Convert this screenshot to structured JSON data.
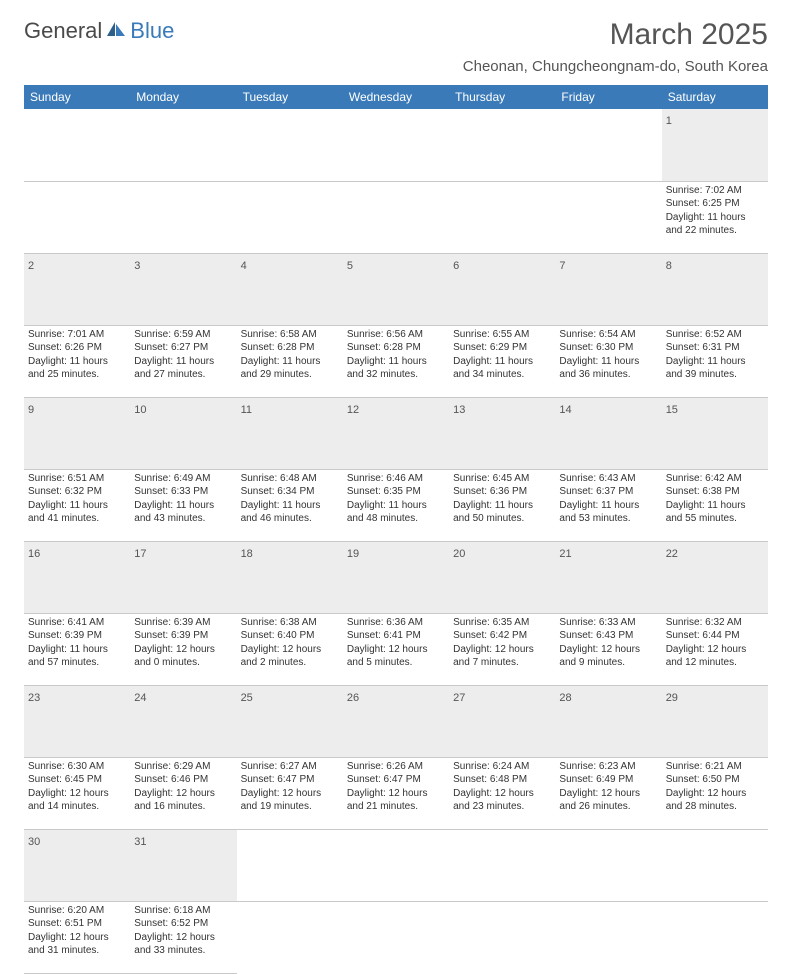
{
  "logo": {
    "word1": "General",
    "word2": "Blue"
  },
  "title": "March 2025",
  "location": "Cheonan, Chungcheongnam-do, South Korea",
  "colors": {
    "headerBlue": "#3a7ab8",
    "daynumBg": "#ededed",
    "borderGray": "#c9c9c9",
    "textGray": "#555555",
    "bodyText": "#333333",
    "white": "#ffffff"
  },
  "fonts": {
    "titleSize": 30,
    "locationSize": 15,
    "dayHeaderSize": 12,
    "dayNumSize": 11,
    "bodySize": 10
  },
  "dayHeaders": [
    "Sunday",
    "Monday",
    "Tuesday",
    "Wednesday",
    "Thursday",
    "Friday",
    "Saturday"
  ],
  "weeks": [
    [
      null,
      null,
      null,
      null,
      null,
      null,
      {
        "n": "1",
        "sunrise": "7:02 AM",
        "sunset": "6:25 PM",
        "daylight": "11 hours and 22 minutes."
      }
    ],
    [
      {
        "n": "2",
        "sunrise": "7:01 AM",
        "sunset": "6:26 PM",
        "daylight": "11 hours and 25 minutes."
      },
      {
        "n": "3",
        "sunrise": "6:59 AM",
        "sunset": "6:27 PM",
        "daylight": "11 hours and 27 minutes."
      },
      {
        "n": "4",
        "sunrise": "6:58 AM",
        "sunset": "6:28 PM",
        "daylight": "11 hours and 29 minutes."
      },
      {
        "n": "5",
        "sunrise": "6:56 AM",
        "sunset": "6:28 PM",
        "daylight": "11 hours and 32 minutes."
      },
      {
        "n": "6",
        "sunrise": "6:55 AM",
        "sunset": "6:29 PM",
        "daylight": "11 hours and 34 minutes."
      },
      {
        "n": "7",
        "sunrise": "6:54 AM",
        "sunset": "6:30 PM",
        "daylight": "11 hours and 36 minutes."
      },
      {
        "n": "8",
        "sunrise": "6:52 AM",
        "sunset": "6:31 PM",
        "daylight": "11 hours and 39 minutes."
      }
    ],
    [
      {
        "n": "9",
        "sunrise": "6:51 AM",
        "sunset": "6:32 PM",
        "daylight": "11 hours and 41 minutes."
      },
      {
        "n": "10",
        "sunrise": "6:49 AM",
        "sunset": "6:33 PM",
        "daylight": "11 hours and 43 minutes."
      },
      {
        "n": "11",
        "sunrise": "6:48 AM",
        "sunset": "6:34 PM",
        "daylight": "11 hours and 46 minutes."
      },
      {
        "n": "12",
        "sunrise": "6:46 AM",
        "sunset": "6:35 PM",
        "daylight": "11 hours and 48 minutes."
      },
      {
        "n": "13",
        "sunrise": "6:45 AM",
        "sunset": "6:36 PM",
        "daylight": "11 hours and 50 minutes."
      },
      {
        "n": "14",
        "sunrise": "6:43 AM",
        "sunset": "6:37 PM",
        "daylight": "11 hours and 53 minutes."
      },
      {
        "n": "15",
        "sunrise": "6:42 AM",
        "sunset": "6:38 PM",
        "daylight": "11 hours and 55 minutes."
      }
    ],
    [
      {
        "n": "16",
        "sunrise": "6:41 AM",
        "sunset": "6:39 PM",
        "daylight": "11 hours and 57 minutes."
      },
      {
        "n": "17",
        "sunrise": "6:39 AM",
        "sunset": "6:39 PM",
        "daylight": "12 hours and 0 minutes."
      },
      {
        "n": "18",
        "sunrise": "6:38 AM",
        "sunset": "6:40 PM",
        "daylight": "12 hours and 2 minutes."
      },
      {
        "n": "19",
        "sunrise": "6:36 AM",
        "sunset": "6:41 PM",
        "daylight": "12 hours and 5 minutes."
      },
      {
        "n": "20",
        "sunrise": "6:35 AM",
        "sunset": "6:42 PM",
        "daylight": "12 hours and 7 minutes."
      },
      {
        "n": "21",
        "sunrise": "6:33 AM",
        "sunset": "6:43 PM",
        "daylight": "12 hours and 9 minutes."
      },
      {
        "n": "22",
        "sunrise": "6:32 AM",
        "sunset": "6:44 PM",
        "daylight": "12 hours and 12 minutes."
      }
    ],
    [
      {
        "n": "23",
        "sunrise": "6:30 AM",
        "sunset": "6:45 PM",
        "daylight": "12 hours and 14 minutes."
      },
      {
        "n": "24",
        "sunrise": "6:29 AM",
        "sunset": "6:46 PM",
        "daylight": "12 hours and 16 minutes."
      },
      {
        "n": "25",
        "sunrise": "6:27 AM",
        "sunset": "6:47 PM",
        "daylight": "12 hours and 19 minutes."
      },
      {
        "n": "26",
        "sunrise": "6:26 AM",
        "sunset": "6:47 PM",
        "daylight": "12 hours and 21 minutes."
      },
      {
        "n": "27",
        "sunrise": "6:24 AM",
        "sunset": "6:48 PM",
        "daylight": "12 hours and 23 minutes."
      },
      {
        "n": "28",
        "sunrise": "6:23 AM",
        "sunset": "6:49 PM",
        "daylight": "12 hours and 26 minutes."
      },
      {
        "n": "29",
        "sunrise": "6:21 AM",
        "sunset": "6:50 PM",
        "daylight": "12 hours and 28 minutes."
      }
    ],
    [
      {
        "n": "30",
        "sunrise": "6:20 AM",
        "sunset": "6:51 PM",
        "daylight": "12 hours and 31 minutes."
      },
      {
        "n": "31",
        "sunrise": "6:18 AM",
        "sunset": "6:52 PM",
        "daylight": "12 hours and 33 minutes."
      },
      null,
      null,
      null,
      null,
      null
    ]
  ],
  "labels": {
    "sunrise": "Sunrise:",
    "sunset": "Sunset:",
    "daylight": "Daylight:"
  }
}
